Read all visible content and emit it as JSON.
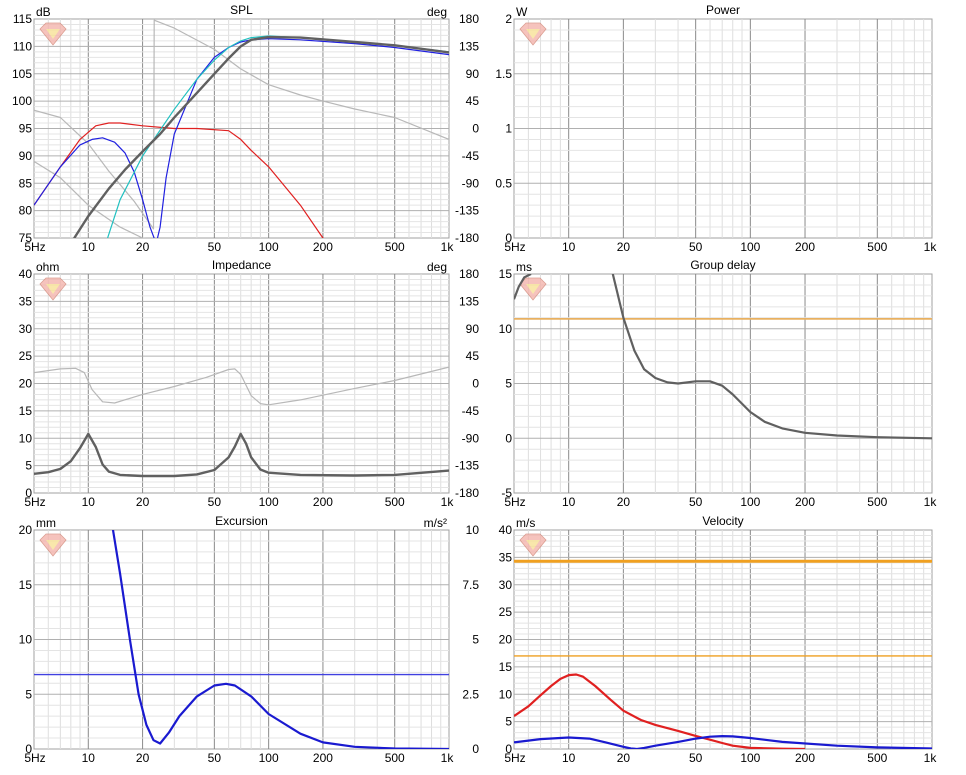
{
  "chart_data": [
    {
      "id": "spl",
      "type": "line",
      "title": "SPL",
      "unit_left": "dB",
      "unit_right": "deg",
      "xlim": [
        5,
        1000
      ],
      "xscale": "log",
      "x_ticks": [
        {
          "v": 5,
          "t": "5Hz"
        },
        {
          "v": 10,
          "t": "10"
        },
        {
          "v": 20,
          "t": "20"
        },
        {
          "v": 50,
          "t": "50"
        },
        {
          "v": 100,
          "t": "100"
        },
        {
          "v": 200,
          "t": "200"
        },
        {
          "v": 500,
          "t": "500"
        },
        {
          "v": 1000,
          "t": "1k"
        }
      ],
      "ylim": [
        75,
        115
      ],
      "y_ticks": [
        "75",
        "80",
        "85",
        "90",
        "95",
        "100",
        "105",
        "110",
        "115"
      ],
      "ylim_right": [
        -180,
        180
      ],
      "y_ticks_right": [
        "-180",
        "-135",
        "-90",
        "-45",
        "0",
        "45",
        "90",
        "135",
        "180"
      ],
      "series": [
        {
          "color": "#b8b8b8",
          "width": 1.2,
          "axis": "right",
          "x": [
            5,
            7,
            10,
            13,
            18,
            23,
            23.2,
            30,
            50,
            70,
            100,
            150,
            200,
            300,
            500,
            1000
          ],
          "y": [
            30,
            18,
            -25,
            -70,
            -120,
            -165,
            178,
            165,
            130,
            98,
            72,
            55,
            45,
            32,
            18,
            -18
          ]
        },
        {
          "color": "#b8b8b8",
          "width": 1.2,
          "axis": "left",
          "x": [
            5,
            7,
            10,
            15,
            20,
            30
          ],
          "y": [
            89,
            86,
            81,
            77,
            75,
            74
          ]
        },
        {
          "color": "#e02020",
          "width": 1.2,
          "axis": "left",
          "x": [
            5,
            7,
            9,
            11,
            13,
            15,
            20,
            30,
            40,
            60,
            70,
            80,
            100,
            150,
            200,
            210
          ],
          "y": [
            81,
            88,
            93,
            95.5,
            96,
            96,
            95.5,
            95,
            95,
            94.6,
            93,
            91,
            88,
            81,
            75,
            74.5
          ]
        },
        {
          "color": "#2020e0",
          "width": 1.2,
          "axis": "left",
          "x": [
            5,
            7,
            9,
            10.5,
            12,
            14,
            16,
            18,
            20,
            22,
            23.8,
            25,
            27,
            30,
            40,
            50,
            60,
            70,
            80,
            100,
            150,
            300,
            500,
            1000
          ],
          "y": [
            81,
            88,
            92,
            93,
            93.3,
            92.5,
            90.5,
            87,
            82,
            77,
            74,
            77,
            86,
            94,
            104,
            108,
            109.8,
            110.8,
            111.2,
            111.4,
            111.2,
            110.5,
            109.8,
            108.5
          ]
        },
        {
          "color": "#20c0c0",
          "width": 1.2,
          "axis": "left",
          "x": [
            12.5,
            15,
            20,
            30,
            40,
            50,
            60,
            70,
            80,
            100,
            150,
            300,
            500,
            1000
          ],
          "y": [
            74,
            82,
            90,
            98.5,
            104,
            107.5,
            109.8,
            111,
            111.6,
            111.9,
            111.6,
            110.8,
            110.2,
            109
          ]
        },
        {
          "color": "#606060",
          "width": 2.4,
          "axis": "left",
          "x": [
            8,
            10,
            13,
            16,
            20,
            25,
            30,
            40,
            50,
            60,
            70,
            80,
            100,
            150,
            300,
            500,
            1000
          ],
          "y": [
            74,
            79,
            84,
            87.5,
            90.8,
            94,
            97,
            101.5,
            105,
            107.8,
            110,
            111.2,
            111.7,
            111.6,
            110.8,
            110.2,
            108.9
          ]
        }
      ],
      "hlines": []
    },
    {
      "id": "power",
      "type": "line",
      "title": "Power",
      "unit_left": "W",
      "unit_right": "",
      "xlim": [
        5,
        1000
      ],
      "xscale": "log",
      "x_ticks": [
        {
          "v": 5,
          "t": "5Hz"
        },
        {
          "v": 10,
          "t": "10"
        },
        {
          "v": 20,
          "t": "20"
        },
        {
          "v": 50,
          "t": "50"
        },
        {
          "v": 100,
          "t": "100"
        },
        {
          "v": 200,
          "t": "200"
        },
        {
          "v": 500,
          "t": "500"
        },
        {
          "v": 1000,
          "t": "1k"
        }
      ],
      "ylim": [
        0,
        2
      ],
      "y_ticks": [
        "0",
        "0.5",
        "1",
        "1.5",
        "2"
      ],
      "series": [],
      "hlines": []
    },
    {
      "id": "impedance",
      "type": "line",
      "title": "Impedance",
      "unit_left": "ohm",
      "unit_right": "deg",
      "xlim": [
        5,
        1000
      ],
      "xscale": "log",
      "x_ticks": [
        {
          "v": 5,
          "t": "5Hz"
        },
        {
          "v": 10,
          "t": "10"
        },
        {
          "v": 20,
          "t": "20"
        },
        {
          "v": 50,
          "t": "50"
        },
        {
          "v": 100,
          "t": "100"
        },
        {
          "v": 200,
          "t": "200"
        },
        {
          "v": 500,
          "t": "500"
        },
        {
          "v": 1000,
          "t": "1k"
        }
      ],
      "ylim": [
        0,
        40
      ],
      "y_ticks": [
        "0",
        "5",
        "10",
        "15",
        "20",
        "25",
        "30",
        "35",
        "40"
      ],
      "ylim_right": [
        -180,
        180
      ],
      "y_ticks_right": [
        "-180",
        "-135",
        "-90",
        "-45",
        "0",
        "45",
        "90",
        "135",
        "180"
      ],
      "series": [
        {
          "color": "#b8b8b8",
          "width": 1.2,
          "axis": "right",
          "x": [
            5,
            7,
            8.5,
            9.5,
            10.5,
            12,
            14,
            20,
            30,
            45,
            60,
            65,
            70,
            80,
            90,
            100,
            150,
            300,
            500,
            1000
          ],
          "y": [
            18,
            24,
            25,
            18,
            -10,
            -30,
            -32,
            -18,
            -5,
            10,
            23,
            24,
            15,
            -20,
            -33,
            -35,
            -27,
            -8,
            5,
            27
          ]
        },
        {
          "color": "#606060",
          "width": 2.4,
          "axis": "left",
          "x": [
            5,
            6,
            7,
            8,
            9,
            10,
            11,
            12,
            13,
            15,
            20,
            30,
            40,
            50,
            60,
            65,
            70,
            75,
            80,
            90,
            100,
            150,
            300,
            500,
            1000
          ],
          "y": [
            3.5,
            3.8,
            4.4,
            5.8,
            8.2,
            10.8,
            8.4,
            5.2,
            3.9,
            3.3,
            3.1,
            3.1,
            3.4,
            4.2,
            6.5,
            8.5,
            10.8,
            9,
            6.5,
            4.3,
            3.7,
            3.3,
            3.2,
            3.3,
            4.1
          ]
        }
      ],
      "hlines": []
    },
    {
      "id": "group-delay",
      "type": "line",
      "title": "Group delay",
      "unit_left": "ms",
      "unit_right": "",
      "xlim": [
        5,
        1000
      ],
      "xscale": "log",
      "x_ticks": [
        {
          "v": 5,
          "t": "5Hz"
        },
        {
          "v": 10,
          "t": "10"
        },
        {
          "v": 20,
          "t": "20"
        },
        {
          "v": 50,
          "t": "50"
        },
        {
          "v": 100,
          "t": "100"
        },
        {
          "v": 200,
          "t": "200"
        },
        {
          "v": 500,
          "t": "500"
        },
        {
          "v": 1000,
          "t": "1k"
        }
      ],
      "ylim": [
        -5,
        15
      ],
      "y_ticks": [
        "-5",
        "0",
        "5",
        "10",
        "15"
      ],
      "series": [
        {
          "color": "#606060",
          "width": 2.2,
          "axis": "left",
          "x": [
            5,
            5.3,
            5.7,
            6.2
          ],
          "y": [
            12.7,
            13.8,
            14.7,
            15
          ]
        },
        {
          "color": "#606060",
          "width": 2.2,
          "axis": "left",
          "x": [
            17.5,
            20,
            23,
            26,
            30,
            35,
            40,
            50,
            60,
            70,
            80,
            100,
            120,
            150,
            200,
            300,
            500,
            1000
          ],
          "y": [
            15,
            11,
            8,
            6.3,
            5.5,
            5.1,
            5.0,
            5.2,
            5.2,
            4.8,
            4,
            2.4,
            1.5,
            0.9,
            0.5,
            0.25,
            0.1,
            0
          ]
        }
      ],
      "hlines": [
        {
          "y": 10.9,
          "color": "#e8b060",
          "width": 1.8
        }
      ]
    },
    {
      "id": "excursion",
      "type": "line",
      "title": "Excursion",
      "unit_left": "mm",
      "unit_right": "m/s²",
      "xlim": [
        5,
        1000
      ],
      "xscale": "log",
      "x_ticks": [
        {
          "v": 5,
          "t": "5Hz"
        },
        {
          "v": 10,
          "t": "10"
        },
        {
          "v": 20,
          "t": "20"
        },
        {
          "v": 50,
          "t": "50"
        },
        {
          "v": 100,
          "t": "100"
        },
        {
          "v": 200,
          "t": "200"
        },
        {
          "v": 500,
          "t": "500"
        },
        {
          "v": 1000,
          "t": "1k"
        }
      ],
      "ylim": [
        0,
        20
      ],
      "y_ticks": [
        "0",
        "5",
        "10",
        "15",
        "20"
      ],
      "ylim_right": [
        0,
        10
      ],
      "y_ticks_right": [
        "0",
        "2.5",
        "5",
        "7.5",
        "10"
      ],
      "series": [
        {
          "color": "#1a1ad0",
          "width": 2.2,
          "axis": "left",
          "x": [
            13.7,
            15,
            17,
            19,
            21,
            23,
            25,
            28,
            32,
            40,
            50,
            58,
            65,
            80,
            100,
            150,
            200,
            300,
            500,
            1000
          ],
          "y": [
            20,
            16,
            10,
            5,
            2.2,
            0.8,
            0.5,
            1.5,
            3,
            4.8,
            5.8,
            5.95,
            5.8,
            4.8,
            3.2,
            1.4,
            0.6,
            0.2,
            0.05,
            0
          ]
        }
      ],
      "hlines": [
        {
          "y": 6.8,
          "color": "#4040e0",
          "width": 1.4
        }
      ]
    },
    {
      "id": "velocity",
      "type": "line",
      "title": "Velocity",
      "unit_left": "m/s",
      "unit_right": "",
      "xlim": [
        5,
        1000
      ],
      "xscale": "log",
      "x_ticks": [
        {
          "v": 5,
          "t": "5Hz"
        },
        {
          "v": 10,
          "t": "10"
        },
        {
          "v": 20,
          "t": "20"
        },
        {
          "v": 50,
          "t": "50"
        },
        {
          "v": 100,
          "t": "100"
        },
        {
          "v": 200,
          "t": "200"
        },
        {
          "v": 500,
          "t": "500"
        },
        {
          "v": 1000,
          "t": "1k"
        }
      ],
      "ylim": [
        0,
        40
      ],
      "y_ticks": [
        "0",
        "5",
        "10",
        "15",
        "20",
        "25",
        "30",
        "35",
        "40"
      ],
      "series": [
        {
          "color": "#e02020",
          "width": 2.2,
          "axis": "left",
          "x": [
            5,
            6,
            7,
            8,
            9,
            10,
            11,
            12,
            14,
            17,
            20,
            25,
            30,
            40,
            50,
            60,
            70,
            80,
            100,
            150,
            200
          ],
          "y": [
            6,
            7.8,
            9.8,
            11.5,
            12.8,
            13.5,
            13.6,
            13.2,
            11.5,
            9,
            7,
            5.3,
            4.4,
            3.3,
            2.4,
            1.7,
            1.1,
            0.6,
            0.2,
            0.05,
            0
          ]
        },
        {
          "color": "#1a1ad0",
          "width": 2.2,
          "axis": "left",
          "x": [
            5,
            7,
            10,
            13,
            16,
            20,
            22,
            23.8,
            26,
            30,
            40,
            50,
            60,
            70,
            80,
            100,
            150,
            300,
            500,
            1000
          ],
          "y": [
            1.2,
            1.8,
            2.1,
            1.9,
            1.2,
            0.4,
            0.1,
            0,
            0.2,
            0.6,
            1.3,
            1.9,
            2.25,
            2.35,
            2.3,
            2,
            1.3,
            0.6,
            0.3,
            0.1
          ]
        }
      ],
      "hlines": [
        {
          "y": 34.3,
          "color": "#f0a020",
          "width": 3
        },
        {
          "y": 17,
          "color": "#f0a020",
          "width": 1.4
        }
      ]
    }
  ]
}
